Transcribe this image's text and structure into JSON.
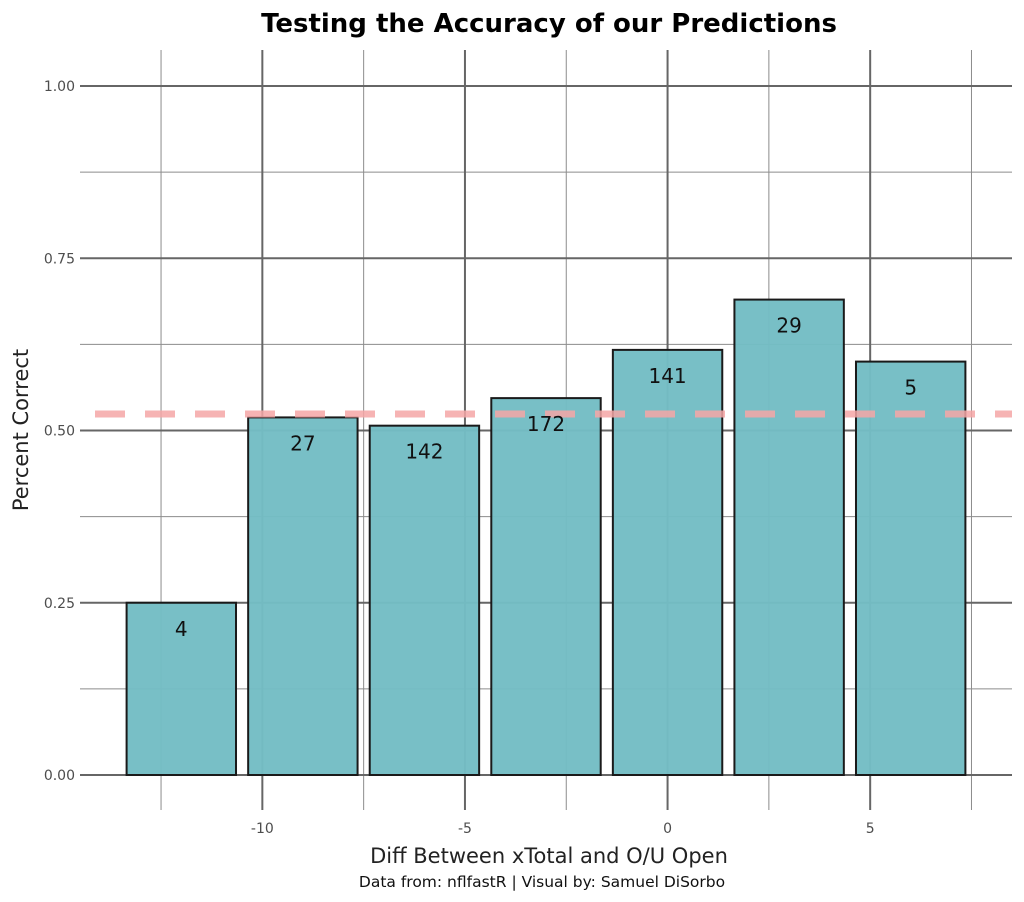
{
  "chart_data": {
    "type": "bar",
    "title": "Testing the Accuracy of our Predictions",
    "xlabel": "Diff Between xTotal and O/U Open",
    "ylabel": "Percent Correct",
    "caption": "Data from: nflfastR | Visual by: Samuel DiSorbo",
    "x": [
      -12,
      -9,
      -6,
      -3,
      0,
      3,
      6
    ],
    "values": [
      0.25,
      0.519,
      0.507,
      0.547,
      0.617,
      0.69,
      0.6
    ],
    "bar_labels": [
      "4",
      "27",
      "142",
      "172",
      "141",
      "29",
      "5"
    ],
    "bar_width": 2.7,
    "reference_line": {
      "y": 0.524,
      "style": "dashed",
      "color": "#f4a6a6"
    },
    "xlim": [
      -14.5,
      8.5
    ],
    "ylim": [
      0,
      1
    ],
    "x_ticks": [
      -10,
      -5,
      0,
      5
    ],
    "x_tick_labels": [
      "-10",
      "-5",
      "0",
      "5"
    ],
    "y_ticks": [
      0,
      0.25,
      0.5,
      0.75,
      1
    ],
    "y_tick_labels": [
      "0.00",
      "0.25",
      "0.50",
      "0.75",
      "1.00"
    ],
    "grid": true,
    "legend": "none",
    "bar_fill": "#74bdc4",
    "bar_stroke": "#1a1a1a",
    "grid_major_color": "#666666",
    "grid_minor_color": "#8c8c8c"
  }
}
